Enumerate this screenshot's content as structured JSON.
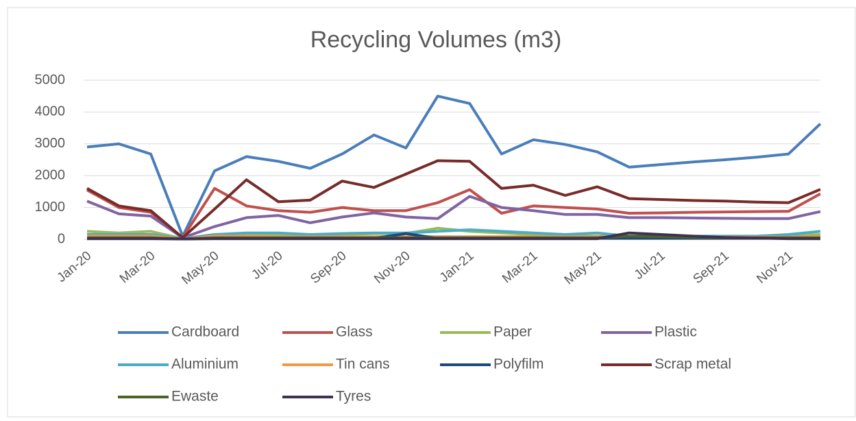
{
  "chart_data": {
    "type": "line",
    "title": "Recycling Volumes (m3)",
    "categories": [
      "Jan-20",
      null,
      "Mar-20",
      null,
      "May-20",
      null,
      "Jul-20",
      null,
      "Sep-20",
      null,
      "Nov-20",
      null,
      "Jan-21",
      null,
      "Mar-21",
      null,
      "May-21",
      null,
      "Jul-21",
      null,
      "Sep-21",
      null,
      "Nov-21",
      null
    ],
    "ylim": [
      0,
      5000
    ],
    "yticks": [
      0,
      1000,
      2000,
      3000,
      4000,
      5000
    ],
    "grid": true,
    "legend": "bottom",
    "series": [
      {
        "name": "Cardboard",
        "color": "#4a7ebb",
        "values": [
          2900,
          3000,
          2680,
          100,
          2150,
          2600,
          2450,
          2230,
          2680,
          3280,
          2870,
          4500,
          4270,
          2680,
          3130,
          2980,
          2750,
          2270,
          2350,
          2430,
          2500,
          2580,
          2680,
          3630
        ]
      },
      {
        "name": "Glass",
        "color": "#c0504d",
        "values": [
          1550,
          1000,
          850,
          50,
          1600,
          1050,
          900,
          850,
          1000,
          900,
          900,
          1150,
          1560,
          820,
          1050,
          1000,
          950,
          820,
          830,
          850,
          860,
          870,
          880,
          1430
        ]
      },
      {
        "name": "Paper",
        "color": "#9bbb59",
        "values": [
          250,
          200,
          250,
          20,
          150,
          150,
          150,
          150,
          150,
          180,
          180,
          350,
          250,
          200,
          150,
          100,
          100,
          80,
          80,
          80,
          80,
          80,
          100,
          150
        ]
      },
      {
        "name": "Plastic",
        "color": "#8064a2",
        "values": [
          1200,
          800,
          730,
          50,
          400,
          680,
          750,
          520,
          700,
          830,
          700,
          650,
          1350,
          1000,
          900,
          780,
          780,
          680,
          680,
          670,
          660,
          650,
          650,
          870
        ]
      },
      {
        "name": "Aluminium",
        "color": "#4bacc6",
        "values": [
          150,
          150,
          150,
          20,
          150,
          200,
          200,
          150,
          180,
          200,
          200,
          250,
          300,
          250,
          200,
          150,
          200,
          100,
          100,
          100,
          100,
          100,
          150,
          250
        ]
      },
      {
        "name": "Tin cans",
        "color": "#f79646",
        "values": [
          100,
          100,
          100,
          10,
          100,
          100,
          80,
          80,
          80,
          80,
          80,
          80,
          80,
          80,
          80,
          80,
          80,
          80,
          80,
          70,
          70,
          70,
          70,
          80
        ]
      },
      {
        "name": "Polyfilm",
        "color": "#1f497d",
        "values": [
          30,
          30,
          30,
          10,
          30,
          30,
          30,
          30,
          30,
          30,
          180,
          30,
          30,
          30,
          30,
          30,
          30,
          30,
          30,
          30,
          30,
          30,
          30,
          30
        ]
      },
      {
        "name": "Scrap metal",
        "color": "#772c2a",
        "values": [
          1600,
          1050,
          900,
          50,
          950,
          1870,
          1180,
          1230,
          1830,
          1630,
          2050,
          2470,
          2450,
          1600,
          1700,
          1380,
          1650,
          1280,
          1250,
          1220,
          1200,
          1170,
          1150,
          1570
        ]
      },
      {
        "name": "Ewaste",
        "color": "#4f6228",
        "values": [
          50,
          50,
          50,
          10,
          50,
          50,
          50,
          50,
          50,
          50,
          50,
          50,
          50,
          50,
          50,
          50,
          50,
          100,
          80,
          60,
          50,
          50,
          50,
          50
        ]
      },
      {
        "name": "Tyres",
        "color": "#3f3151",
        "values": [
          20,
          20,
          20,
          10,
          20,
          20,
          20,
          20,
          20,
          20,
          20,
          20,
          20,
          20,
          20,
          20,
          20,
          200,
          150,
          100,
          60,
          40,
          20,
          20
        ]
      }
    ]
  }
}
